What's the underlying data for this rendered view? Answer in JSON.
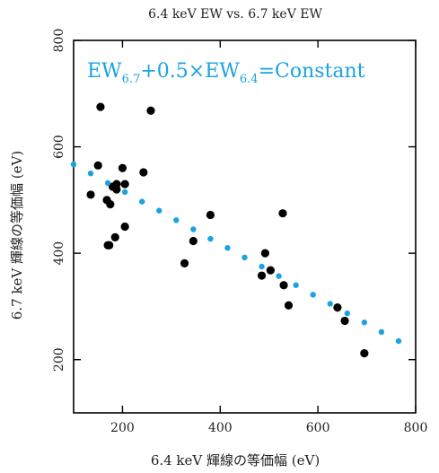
{
  "chart_data": {
    "type": "scatter",
    "title": "6.4 keV EW vs. 6.7 keV EW",
    "xlabel": "6.4 keV 輝線の等価幅 (eV)",
    "ylabel": "6.7 keV 輝線の等価幅 (eV)",
    "xlim": [
      100,
      800
    ],
    "ylim": [
      100,
      800
    ],
    "xticks": [
      200,
      400,
      600,
      800
    ],
    "yticks": [
      200,
      400,
      600,
      800
    ],
    "grid": false,
    "annotation": {
      "parts": [
        "EW",
        "6.7",
        "+0.5×EW",
        "6.4",
        "=Constant"
      ],
      "color": "#1aa3e0"
    },
    "series": [
      {
        "kind": "observed",
        "color": "#000000",
        "x": [
          155,
          258,
          150,
          200,
          135,
          243,
          205,
          180,
          188,
          168,
          175,
          170,
          188,
          205,
          185,
          173,
          380,
          528,
          345,
          327,
          492,
          503,
          485,
          530,
          540,
          640,
          655,
          695
        ],
        "y": [
          675,
          668,
          565,
          560,
          510,
          552,
          530,
          525,
          530,
          500,
          492,
          415,
          520,
          450,
          430,
          415,
          472,
          475,
          423,
          381,
          400,
          368,
          358,
          340,
          302,
          298,
          273,
          212
        ]
      },
      {
        "kind": "model",
        "color": "#1aa3e0",
        "x": [
          100,
          135,
          170,
          205,
          240,
          275,
          310,
          345,
          380,
          415,
          450,
          485,
          520,
          555,
          590,
          625,
          660,
          695,
          730,
          765
        ],
        "y": [
          567,
          550,
          532,
          515,
          497,
          480,
          462,
          445,
          427,
          410,
          392,
          375,
          357,
          340,
          322,
          305,
          287,
          270,
          252,
          235
        ]
      }
    ]
  }
}
